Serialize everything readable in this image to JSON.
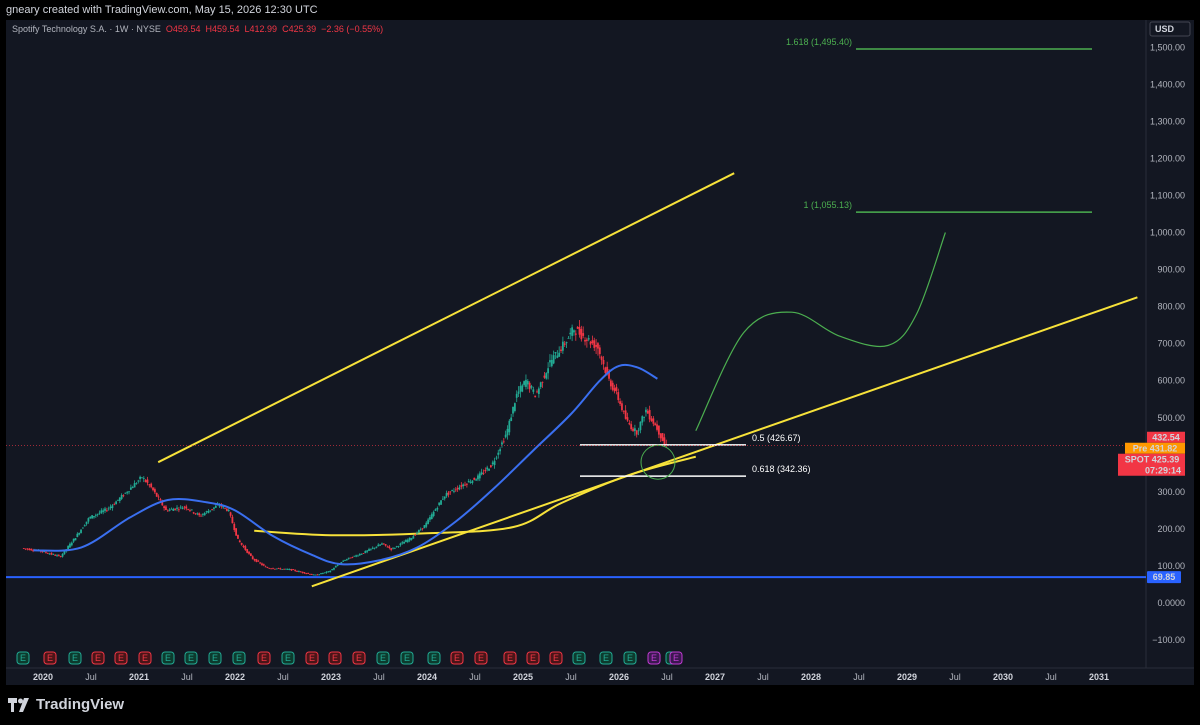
{
  "header": {
    "caption": "gneary created with TradingView.com, May 15, 2026 12:30 UTC"
  },
  "legend": {
    "symbol": "Spotify Technology S.A. · 1W · NYSE",
    "open": "O459.54",
    "high": "H459.54",
    "low": "L412.99",
    "close": "C425.39",
    "change": "−2.36 (−0.55%)"
  },
  "footer": {
    "brand": "TradingView"
  },
  "colors": {
    "background": "#131722",
    "up": "#22ab94",
    "down": "#f23645",
    "channel": "#f7e23a",
    "ma": "#3a6ff0",
    "projection": "#4caf50",
    "support": "#2962ff"
  },
  "chart_data": {
    "type": "candlestick",
    "timeframe": "1W",
    "currency": "USD",
    "ylim": [
      -125,
      1600
    ],
    "y_ticks": [
      "1,500.00",
      "1,400.00",
      "1,300.00",
      "1,200.00",
      "1,100.00",
      "1,000.00",
      "900.00",
      "800.00",
      "700.00",
      "600.00",
      "500.00",
      "300.00",
      "200.00",
      "100.00",
      "0.0000",
      "−100.00"
    ],
    "x_ticks": [
      "2020",
      "Jul",
      "2021",
      "Jul",
      "2022",
      "Jul",
      "2023",
      "Jul",
      "2024",
      "Jul",
      "2025",
      "Jul",
      "2026",
      "Jul",
      "2027",
      "Jul",
      "2028",
      "Jul",
      "2029",
      "Jul",
      "2030",
      "Jul",
      "2031"
    ],
    "price_path": [
      [
        2019.8,
        148
      ],
      [
        2020.0,
        140
      ],
      [
        2020.2,
        125
      ],
      [
        2020.35,
        175
      ],
      [
        2020.5,
        230
      ],
      [
        2020.7,
        255
      ],
      [
        2020.85,
        290
      ],
      [
        2021.05,
        340
      ],
      [
        2021.15,
        310
      ],
      [
        2021.3,
        250
      ],
      [
        2021.5,
        260
      ],
      [
        2021.65,
        235
      ],
      [
        2021.85,
        265
      ],
      [
        2021.95,
        250
      ],
      [
        2022.05,
        170
      ],
      [
        2022.2,
        120
      ],
      [
        2022.35,
        95
      ],
      [
        2022.6,
        90
      ],
      [
        2022.85,
        75
      ],
      [
        2023.0,
        85
      ],
      [
        2023.15,
        115
      ],
      [
        2023.35,
        135
      ],
      [
        2023.55,
        160
      ],
      [
        2023.65,
        145
      ],
      [
        2023.85,
        175
      ],
      [
        2024.0,
        210
      ],
      [
        2024.2,
        290
      ],
      [
        2024.4,
        320
      ],
      [
        2024.55,
        340
      ],
      [
        2024.7,
        375
      ],
      [
        2024.85,
        460
      ],
      [
        2024.95,
        560
      ],
      [
        2025.05,
        600
      ],
      [
        2025.15,
        560
      ],
      [
        2025.3,
        650
      ],
      [
        2025.45,
        700
      ],
      [
        2025.55,
        740
      ],
      [
        2025.65,
        720
      ],
      [
        2025.8,
        690
      ],
      [
        2025.9,
        610
      ],
      [
        2026.0,
        560
      ],
      [
        2026.1,
        490
      ],
      [
        2026.2,
        460
      ],
      [
        2026.3,
        520
      ],
      [
        2026.42,
        470
      ],
      [
        2026.5,
        425
      ]
    ],
    "moving_average": [
      [
        2019.9,
        142
      ],
      [
        2020.4,
        150
      ],
      [
        2020.9,
        230
      ],
      [
        2021.3,
        278
      ],
      [
        2021.7,
        272
      ],
      [
        2022.0,
        250
      ],
      [
        2022.4,
        180
      ],
      [
        2022.8,
        130
      ],
      [
        2023.1,
        105
      ],
      [
        2023.5,
        115
      ],
      [
        2023.9,
        150
      ],
      [
        2024.3,
        220
      ],
      [
        2024.7,
        310
      ],
      [
        2025.1,
        410
      ],
      [
        2025.5,
        510
      ],
      [
        2025.8,
        600
      ],
      [
        2026.0,
        640
      ],
      [
        2026.2,
        635
      ],
      [
        2026.4,
        605
      ]
    ],
    "upper_channel": [
      [
        2021.2,
        380
      ],
      [
        2027.2,
        1160
      ]
    ],
    "lower_channel": [
      [
        2022.8,
        45
      ],
      [
        2031.4,
        825
      ]
    ],
    "curved_support": [
      [
        2022.2,
        195
      ],
      [
        2023.0,
        183
      ],
      [
        2024.0,
        188
      ],
      [
        2024.9,
        205
      ],
      [
        2025.4,
        270
      ],
      [
        2026.1,
        345
      ],
      [
        2026.8,
        395
      ]
    ],
    "projection_path": [
      [
        2026.8,
        465
      ],
      [
        2027.3,
        730
      ],
      [
        2027.8,
        785
      ],
      [
        2028.3,
        720
      ],
      [
        2028.8,
        695
      ],
      [
        2029.1,
        780
      ],
      [
        2029.4,
        1000
      ]
    ],
    "fib_levels": [
      {
        "label": "0.5 (426.67)",
        "value": 426.67
      },
      {
        "label": "0.618 (342.36)",
        "value": 342.36
      },
      {
        "label": "1 (1,055.13)",
        "value": 1055.13
      },
      {
        "label": "1.618 (1,495.40)",
        "value": 1495.4
      }
    ],
    "support_line": {
      "label": "69.85",
      "value": 69.85
    },
    "price_tags": [
      {
        "text": "432.54",
        "value": 432.54
      },
      {
        "text": "Pre 431.82",
        "value": 431.82
      },
      {
        "text": "SPOT 425.39",
        "value": 425.39
      },
      {
        "text": "07:29:14"
      }
    ],
    "earnings_markers": [
      "E",
      "E",
      "E",
      "E",
      "E",
      "E",
      "E",
      "E",
      "E",
      "E",
      "E",
      "E",
      "E",
      "E",
      "E",
      "E",
      "E",
      "E",
      "E",
      "E",
      "E",
      "E",
      "E",
      "E",
      "E",
      "E",
      "E",
      "E",
      "E"
    ]
  }
}
